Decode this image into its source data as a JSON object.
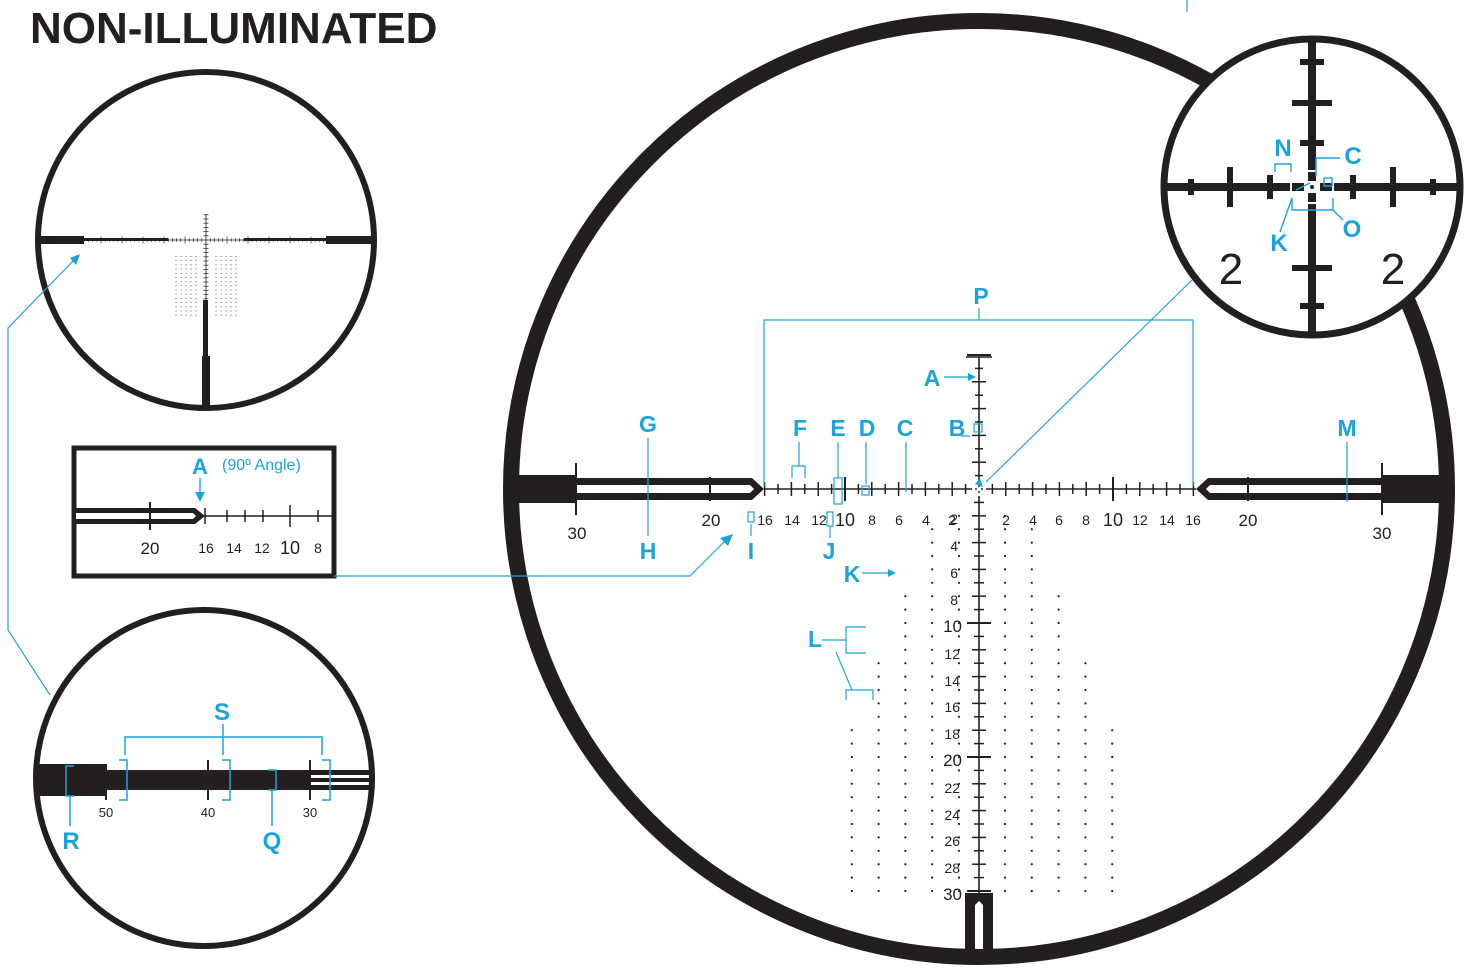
{
  "title": "NON-ILLUMINATED",
  "accent_color": "#1aa3dd",
  "ink_color": "#231f20",
  "main_reticle": {
    "h_labels_left": [
      "16",
      "14",
      "12",
      "10",
      "8",
      "6",
      "4",
      "2"
    ],
    "h_labels_right": [
      "2",
      "4",
      "6",
      "8",
      "10",
      "12",
      "14",
      "16"
    ],
    "post_labels_left": [
      "20",
      "30"
    ],
    "post_labels_right": [
      "20",
      "30"
    ],
    "v_labels": [
      "2",
      "4",
      "6",
      "8",
      "10",
      "12",
      "14",
      "16",
      "18",
      "20",
      "22",
      "24",
      "26",
      "28",
      "30"
    ]
  },
  "callouts": {
    "A": "A",
    "B": "B",
    "C": "C",
    "D": "D",
    "E": "E",
    "F": "F",
    "G": "G",
    "H": "H",
    "I": "I",
    "J": "J",
    "K": "K",
    "L": "L",
    "M": "M",
    "N": "N",
    "O": "O",
    "P": "P",
    "Q": "Q",
    "R": "R",
    "S": "S"
  },
  "zoom_center": {
    "label_left": "2",
    "label_right": "2"
  },
  "angle_inset": {
    "label": "A",
    "angle_text": "(90º Angle)",
    "numbers": [
      "20",
      "16",
      "14",
      "12",
      "10",
      "8"
    ]
  },
  "post_zoom": {
    "numbers": [
      "50",
      "40",
      "30"
    ]
  }
}
